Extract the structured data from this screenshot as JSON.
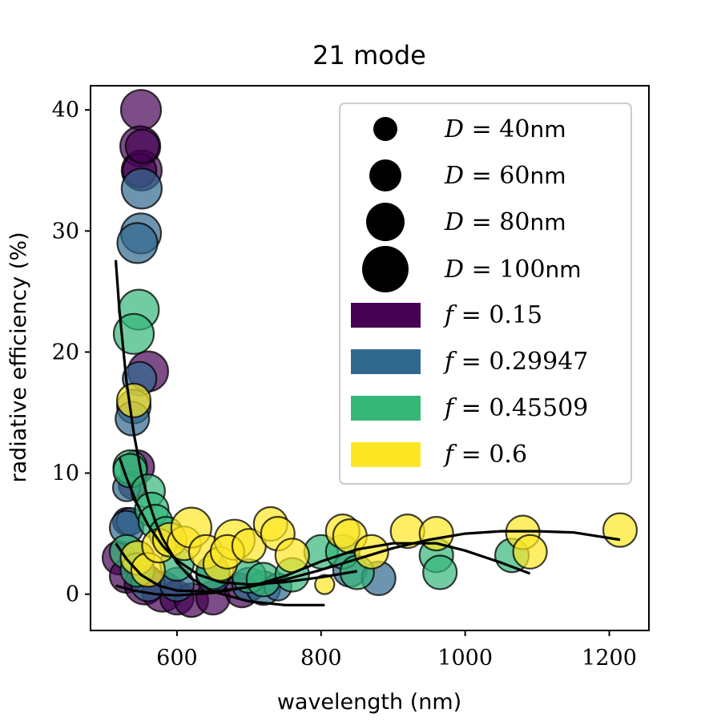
{
  "chart_data": {
    "type": "scatter",
    "title": "21 mode",
    "xlabel": "wavelength (nm)",
    "ylabel": "radiative efficiency (%)",
    "xlim": [
      480,
      1255
    ],
    "ylim": [
      -3,
      42
    ],
    "xticks": [
      "600",
      "800",
      "1000",
      "1200"
    ],
    "yticks": [
      "0",
      "10",
      "20",
      "30",
      "40"
    ],
    "grid": false,
    "legend_position": "top-right",
    "colors": {
      "f=0.15": "#440154",
      "f=0.29947": "#31688e",
      "f=0.45509": "#35b779",
      "f=0.6": "#fde725"
    },
    "size_legend": [
      {
        "var": "D",
        "value": "40",
        "unit": "nm"
      },
      {
        "var": "D",
        "value": "60",
        "unit": "nm"
      },
      {
        "var": "D",
        "value": "80",
        "unit": "nm"
      },
      {
        "var": "D",
        "value": "100",
        "unit": "nm"
      }
    ],
    "color_legend": [
      {
        "var": "f",
        "value": "0.15",
        "color": "#440154"
      },
      {
        "var": "f",
        "value": "0.29947",
        "color": "#31688e"
      },
      {
        "var": "f",
        "value": "0.45509",
        "color": "#35b779"
      },
      {
        "var": "f",
        "value": "0.6",
        "color": "#fde725"
      }
    ],
    "series": [
      {
        "name": "f = 0.15",
        "color": "#440154",
        "points": [
          [
            550,
            40,
            100
          ],
          [
            549,
            37,
            100
          ],
          [
            551,
            35,
            100
          ],
          [
            548,
            35,
            80
          ],
          [
            552,
            37,
            80
          ],
          [
            560,
            18.4,
            100
          ],
          [
            545,
            10.5,
            80
          ],
          [
            538,
            9,
            60
          ],
          [
            530,
            6,
            60
          ],
          [
            520,
            3,
            80
          ],
          [
            530,
            1.5,
            80
          ],
          [
            555,
            0.8,
            100
          ],
          [
            580,
            0.2,
            100
          ],
          [
            600,
            -0.3,
            80
          ],
          [
            620,
            -0.5,
            80
          ],
          [
            650,
            -0.3,
            80
          ],
          [
            690,
            0.3,
            80
          ]
        ]
      },
      {
        "name": "f = 0.29947",
        "color": "#31688e",
        "points": [
          [
            551,
            33.5,
            100
          ],
          [
            550,
            29.8,
            100
          ],
          [
            545,
            29,
            100
          ],
          [
            548,
            17.8,
            80
          ],
          [
            540,
            15.5,
            80
          ],
          [
            538,
            14.5,
            80
          ],
          [
            530,
            8.8,
            60
          ],
          [
            535,
            6,
            60
          ],
          [
            530,
            5.5,
            80
          ],
          [
            545,
            3,
            80
          ],
          [
            560,
            0.8,
            80
          ],
          [
            600,
            0.8,
            80
          ],
          [
            650,
            1.5,
            80
          ],
          [
            700,
            0.8,
            80
          ],
          [
            720,
            0.5,
            80
          ],
          [
            740,
            0.6,
            60
          ],
          [
            840,
            2,
            80
          ],
          [
            880,
            1.3,
            80
          ]
        ]
      },
      {
        "name": "f = 0.45509",
        "color": "#35b779",
        "points": [
          [
            547,
            23.5,
            100
          ],
          [
            540,
            21.5,
            100
          ],
          [
            535,
            10.5,
            80
          ],
          [
            535,
            10.2,
            80
          ],
          [
            560,
            8.5,
            80
          ],
          [
            565,
            7,
            80
          ],
          [
            570,
            6,
            80
          ],
          [
            585,
            5,
            80
          ],
          [
            530,
            3.5,
            80
          ],
          [
            545,
            2,
            80
          ],
          [
            600,
            2.5,
            80
          ],
          [
            650,
            1.8,
            80
          ],
          [
            700,
            1.5,
            80
          ],
          [
            720,
            1.2,
            80
          ],
          [
            760,
            1.6,
            80
          ],
          [
            800,
            3.5,
            80
          ],
          [
            830,
            3.5,
            80
          ],
          [
            850,
            1.8,
            80
          ],
          [
            960,
            3.2,
            80
          ],
          [
            965,
            1.8,
            80
          ],
          [
            1065,
            3.2,
            80
          ]
        ]
      },
      {
        "name": "f = 0.6",
        "color": "#fde725",
        "points": [
          [
            540,
            16,
            80
          ],
          [
            545,
            3,
            80
          ],
          [
            560,
            2,
            80
          ],
          [
            575,
            4,
            80
          ],
          [
            590,
            4.5,
            80
          ],
          [
            610,
            4.2,
            80
          ],
          [
            620,
            5.5,
            100
          ],
          [
            640,
            3.5,
            80
          ],
          [
            660,
            2.5,
            80
          ],
          [
            680,
            4.5,
            100
          ],
          [
            670,
            3.5,
            80
          ],
          [
            700,
            4,
            80
          ],
          [
            730,
            5.8,
            80
          ],
          [
            740,
            5,
            80
          ],
          [
            760,
            3.2,
            80
          ],
          [
            805,
            0.8,
            40
          ],
          [
            830,
            5.2,
            80
          ],
          [
            840,
            4.8,
            80
          ],
          [
            870,
            3.5,
            80
          ],
          [
            920,
            5.2,
            80
          ],
          [
            960,
            5,
            80
          ],
          [
            1080,
            5.1,
            80
          ],
          [
            1090,
            3.5,
            80
          ],
          [
            1215,
            5.3,
            80
          ]
        ]
      }
    ],
    "fits": [
      {
        "name": "fit-f-0.15",
        "x": [
          515,
          520,
          530,
          540,
          550,
          560,
          570,
          580,
          600,
          620,
          650,
          700,
          750,
          800,
          805
        ],
        "y": [
          27.6,
          23.5,
          17.5,
          13.3,
          10.1,
          7.8,
          6.0,
          4.6,
          2.6,
          1.3,
          0.2,
          -0.6,
          -0.9,
          -0.9,
          -0.9
        ]
      },
      {
        "name": "fit-f-0.29947",
        "x": [
          520,
          530,
          545,
          560,
          580,
          600,
          630,
          660,
          700,
          750,
          800,
          850
        ],
        "y": [
          11.3,
          9.6,
          7.4,
          5.7,
          4.0,
          2.8,
          1.6,
          1.0,
          0.8,
          1.0,
          1.4,
          1.9
        ]
      },
      {
        "name": "fit-f-0.45509",
        "x": [
          515,
          530,
          550,
          575,
          600,
          650,
          700,
          750,
          800,
          850,
          900,
          960,
          1000,
          1050,
          1090
        ],
        "y": [
          4.2,
          2.9,
          1.6,
          0.7,
          0.3,
          0.2,
          0.6,
          1.5,
          2.7,
          3.7,
          4.2,
          4.2,
          3.6,
          2.6,
          1.7
        ]
      },
      {
        "name": "fit-f-0.6",
        "x": [
          515,
          540,
          570,
          600,
          650,
          700,
          750,
          800,
          850,
          900,
          950,
          1000,
          1050,
          1100,
          1150,
          1215
        ],
        "y": [
          0.7,
          0.3,
          0.0,
          -0.1,
          0.1,
          0.6,
          1.2,
          2.0,
          2.9,
          3.8,
          4.5,
          5.0,
          5.2,
          5.2,
          5.1,
          4.5
        ]
      }
    ]
  }
}
